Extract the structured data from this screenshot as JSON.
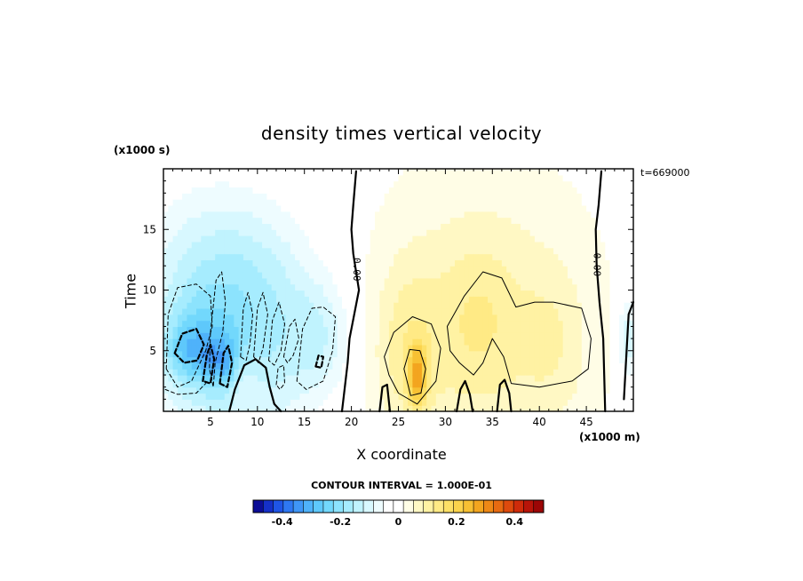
{
  "chart_data": {
    "type": "heatmap",
    "title": "density times vertical velocity",
    "xlabel": "X coordinate",
    "ylabel": "Time",
    "x_unit": "(x1000 m)",
    "y_unit": "(x1000 s)",
    "timestamp": "t=669000",
    "xlim": [
      0,
      50
    ],
    "ylim": [
      0,
      20
    ],
    "x_ticks": [
      5,
      10,
      15,
      20,
      25,
      30,
      35,
      40,
      45
    ],
    "y_ticks": [
      5,
      10,
      15
    ],
    "contour_interval_text": "CONTOUR INTERVAL = 1.000E-01",
    "zero_contour_labels": [
      "0.00",
      "0.00"
    ],
    "zero_contour_label_positions": [
      [
        20.5,
        11.7
      ],
      [
        46.1,
        12.1
      ]
    ],
    "colorbar": {
      "range": [
        -0.5,
        0.5
      ],
      "tick_values": [
        -0.4,
        -0.2,
        0,
        0.2,
        0.4
      ],
      "tick_labels": [
        "-0.4",
        "-0.2",
        "0",
        "0.2",
        "0.4"
      ],
      "colors": [
        "#0c0d96",
        "#1530c8",
        "#1f55e6",
        "#2e78f2",
        "#3f96f7",
        "#4fb2fa",
        "#5ec8fb",
        "#72d8fc",
        "#8ce3fd",
        "#a6ecfe",
        "#c0f3fe",
        "#d8f8ff",
        "#eefcff",
        "#ffffff",
        "#ffffff",
        "#fffde6",
        "#fff8c4",
        "#fff2a3",
        "#ffea85",
        "#fde066",
        "#fbd34c",
        "#f7c033",
        "#f3a51f",
        "#ee8816",
        "#e76a11",
        "#de4a0d",
        "#cf2b0a",
        "#b81409",
        "#9c0606"
      ]
    },
    "field_blobs": [
      {
        "x": 6,
        "y": 6,
        "sx": 8,
        "sy": 11,
        "a": -0.13
      },
      {
        "x": 4,
        "y": 5.5,
        "sx": 4,
        "sy": 4,
        "a": -0.1
      },
      {
        "x": 12,
        "y": 6,
        "sx": 5,
        "sy": 8,
        "a": -0.06
      },
      {
        "x": 17,
        "y": 6,
        "sx": 3.5,
        "sy": 5,
        "a": -0.09
      },
      {
        "x": 6,
        "y": 12,
        "sx": 9,
        "sy": 6,
        "a": -0.06
      },
      {
        "x": 2.5,
        "y": 5,
        "sx": 2.2,
        "sy": 2.2,
        "a": -0.09
      },
      {
        "x": 6.5,
        "y": 4,
        "sx": 1.2,
        "sy": 2.2,
        "a": -0.12
      },
      {
        "x": 4.8,
        "y": 4,
        "sx": 0.9,
        "sy": 2,
        "a": -0.07
      },
      {
        "x": 8.5,
        "y": 2.5,
        "sx": 2,
        "sy": 2,
        "a": 0.05
      },
      {
        "x": 49.5,
        "y": 6,
        "sx": 1.3,
        "sy": 4,
        "a": -0.12
      },
      {
        "x": 34,
        "y": 7,
        "sx": 11,
        "sy": 12,
        "a": 0.09
      },
      {
        "x": 26,
        "y": 5,
        "sx": 3.5,
        "sy": 7,
        "a": 0.07
      },
      {
        "x": 33.5,
        "y": 7.5,
        "sx": 3.5,
        "sy": 6,
        "a": 0.04
      },
      {
        "x": 41.5,
        "y": 5.5,
        "sx": 3.5,
        "sy": 6,
        "a": 0.04
      },
      {
        "x": 27,
        "y": 3,
        "sx": 1,
        "sy": 2.5,
        "a": 0.18
      }
    ],
    "contours": [
      {
        "style": "thick",
        "points": [
          [
            20.5,
            19.8
          ],
          [
            20.2,
            17
          ],
          [
            20.0,
            15
          ],
          [
            20.2,
            13
          ],
          [
            20.8,
            10
          ],
          [
            20.3,
            8
          ],
          [
            19.8,
            6
          ],
          [
            19.6,
            4
          ],
          [
            19.3,
            2
          ],
          [
            19.0,
            0
          ]
        ]
      },
      {
        "style": "thick",
        "points": [
          [
            46.6,
            19.8
          ],
          [
            46.3,
            17
          ],
          [
            46.0,
            15
          ],
          [
            46.1,
            12
          ],
          [
            46.4,
            9
          ],
          [
            46.8,
            6
          ],
          [
            46.9,
            3
          ],
          [
            47.0,
            0
          ]
        ]
      },
      {
        "style": "thick",
        "points": [
          [
            7.0,
            0
          ],
          [
            7.6,
            1.8
          ],
          [
            8.6,
            3.8
          ],
          [
            9.8,
            4.3
          ],
          [
            10.9,
            3.6
          ],
          [
            11.3,
            2.0
          ],
          [
            11.8,
            0.6
          ],
          [
            12.5,
            0
          ]
        ]
      },
      {
        "style": "thick",
        "points": [
          [
            23.0,
            0
          ],
          [
            23.3,
            2.0
          ],
          [
            23.8,
            2.2
          ],
          [
            24.1,
            0
          ]
        ]
      },
      {
        "style": "thick",
        "points": [
          [
            31.2,
            0
          ],
          [
            31.6,
            1.8
          ],
          [
            32.1,
            2.5
          ],
          [
            32.6,
            1.4
          ],
          [
            32.9,
            0
          ]
        ]
      },
      {
        "style": "thick",
        "points": [
          [
            35.5,
            0
          ],
          [
            35.8,
            2.2
          ],
          [
            36.3,
            2.6
          ],
          [
            36.8,
            1.5
          ],
          [
            37.0,
            0
          ]
        ]
      },
      {
        "style": "thick",
        "points": [
          [
            49.0,
            1.0
          ],
          [
            49.5,
            8.0
          ],
          [
            50,
            9.0
          ]
        ]
      },
      {
        "style": "thin",
        "closed": true,
        "points": [
          [
            23.5,
            4.5
          ],
          [
            24.5,
            6.5
          ],
          [
            26.5,
            7.8
          ],
          [
            28.5,
            7.2
          ],
          [
            29.5,
            5.2
          ],
          [
            29.0,
            2.5
          ],
          [
            27.0,
            0.6
          ],
          [
            25.0,
            1.5
          ],
          [
            24.0,
            3.0
          ]
        ]
      },
      {
        "style": "thin",
        "closed": true,
        "points": [
          [
            30.2,
            7.0
          ],
          [
            32.0,
            9.5
          ],
          [
            34.0,
            11.5
          ],
          [
            36.0,
            11.0
          ],
          [
            37.5,
            8.6
          ],
          [
            39.5,
            9.0
          ],
          [
            41.5,
            9.0
          ],
          [
            44.5,
            8.5
          ],
          [
            45.5,
            6.0
          ],
          [
            45.2,
            3.5
          ],
          [
            43.5,
            2.5
          ],
          [
            40.0,
            2.0
          ],
          [
            37.0,
            2.3
          ],
          [
            36.2,
            4.5
          ],
          [
            35.0,
            6.0
          ],
          [
            34.0,
            4.0
          ],
          [
            33.0,
            3.0
          ],
          [
            31.5,
            4.0
          ],
          [
            30.5,
            5.0
          ]
        ]
      },
      {
        "style": "thin",
        "closed": true,
        "points": [
          [
            26.3,
            1.3
          ],
          [
            25.6,
            3.5
          ],
          [
            26.2,
            5.1
          ],
          [
            27.3,
            5.0
          ],
          [
            27.9,
            3.5
          ],
          [
            27.4,
            1.5
          ]
        ]
      },
      {
        "style": "thin-dash",
        "closed": true,
        "points": [
          [
            0.3,
            3.5
          ],
          [
            0.5,
            8
          ],
          [
            1.5,
            10.2
          ],
          [
            3.5,
            10.5
          ],
          [
            5.0,
            9.5
          ],
          [
            5.2,
            7
          ],
          [
            4.5,
            5
          ],
          [
            3.0,
            2.5
          ],
          [
            1.5,
            2
          ]
        ]
      },
      {
        "style": "thick-dash",
        "closed": true,
        "points": [
          [
            1.2,
            4.8
          ],
          [
            2.0,
            6.4
          ],
          [
            3.5,
            6.8
          ],
          [
            4.3,
            5.5
          ],
          [
            3.6,
            4.2
          ],
          [
            2.2,
            4.0
          ]
        ]
      },
      {
        "style": "thin-dash",
        "closed": true,
        "points": [
          [
            5.0,
            6.5
          ],
          [
            5.6,
            10.8
          ],
          [
            6.2,
            11.5
          ],
          [
            6.6,
            9.0
          ],
          [
            6.3,
            6.5
          ],
          [
            5.5,
            4.0
          ],
          [
            5.3,
            2.0
          ],
          [
            4.9,
            3.5
          ]
        ]
      },
      {
        "style": "thick-dash",
        "closed": true,
        "points": [
          [
            4.2,
            2.5
          ],
          [
            4.6,
            4.6
          ],
          [
            5.0,
            5.5
          ],
          [
            5.4,
            4.3
          ],
          [
            5.0,
            2.3
          ]
        ]
      },
      {
        "style": "thick-dash",
        "closed": true,
        "points": [
          [
            6.0,
            2.3
          ],
          [
            6.4,
            4.8
          ],
          [
            6.9,
            5.4
          ],
          [
            7.3,
            4.0
          ],
          [
            6.8,
            2.0
          ]
        ]
      },
      {
        "style": "thin-dash",
        "closed": true,
        "points": [
          [
            8.2,
            4.5
          ],
          [
            8.5,
            8.5
          ],
          [
            9.0,
            9.8
          ],
          [
            9.5,
            8.0
          ],
          [
            9.2,
            5.5
          ],
          [
            8.8,
            4.2
          ]
        ]
      },
      {
        "style": "thin-dash",
        "closed": true,
        "points": [
          [
            9.6,
            4.5
          ],
          [
            10.0,
            8.5
          ],
          [
            10.6,
            9.8
          ],
          [
            11.1,
            8.0
          ],
          [
            10.6,
            5.2
          ],
          [
            10.1,
            4.0
          ]
        ]
      },
      {
        "style": "thin-dash",
        "closed": true,
        "points": [
          [
            11.2,
            4.2
          ],
          [
            11.6,
            7.5
          ],
          [
            12.3,
            9.0
          ],
          [
            12.9,
            7.2
          ],
          [
            12.5,
            5.0
          ],
          [
            11.8,
            3.8
          ]
        ]
      },
      {
        "style": "thin-dash",
        "closed": true,
        "points": [
          [
            12.8,
            4.5
          ],
          [
            13.4,
            7.0
          ],
          [
            14.0,
            7.6
          ],
          [
            14.4,
            6.0
          ],
          [
            13.8,
            4.6
          ],
          [
            13.2,
            4.0
          ]
        ]
      },
      {
        "style": "thin-dash",
        "closed": true,
        "points": [
          [
            14.2,
            2.5
          ],
          [
            14.8,
            6.8
          ],
          [
            15.8,
            8.5
          ],
          [
            17.0,
            8.6
          ],
          [
            18.3,
            7.8
          ],
          [
            18.0,
            5.0
          ],
          [
            17.0,
            2.5
          ],
          [
            15.2,
            1.8
          ]
        ]
      },
      {
        "style": "thick-dash",
        "closed": true,
        "points": [
          [
            16.2,
            3.7
          ],
          [
            16.5,
            4.6
          ],
          [
            17.0,
            4.5
          ],
          [
            16.8,
            3.6
          ]
        ]
      },
      {
        "style": "thin-dash",
        "closed": true,
        "points": [
          [
            12.0,
            2.2
          ],
          [
            12.2,
            3.6
          ],
          [
            12.8,
            3.8
          ],
          [
            12.9,
            2.3
          ],
          [
            12.4,
            1.8
          ]
        ]
      },
      {
        "style": "thin-dash",
        "points": [
          [
            0.2,
            1.8
          ],
          [
            1.5,
            1.4
          ],
          [
            3.5,
            1.5
          ],
          [
            4.5,
            2.3
          ]
        ]
      }
    ]
  },
  "labels": {
    "title": "density times vertical velocity",
    "y_unit": "(x1000 s)",
    "timestamp": "t=669000",
    "x_unit": "(x1000 m)",
    "xlabel": "X coordinate",
    "ylabel": "Time",
    "contour_interval": "CONTOUR INTERVAL = 1.000E-01"
  }
}
